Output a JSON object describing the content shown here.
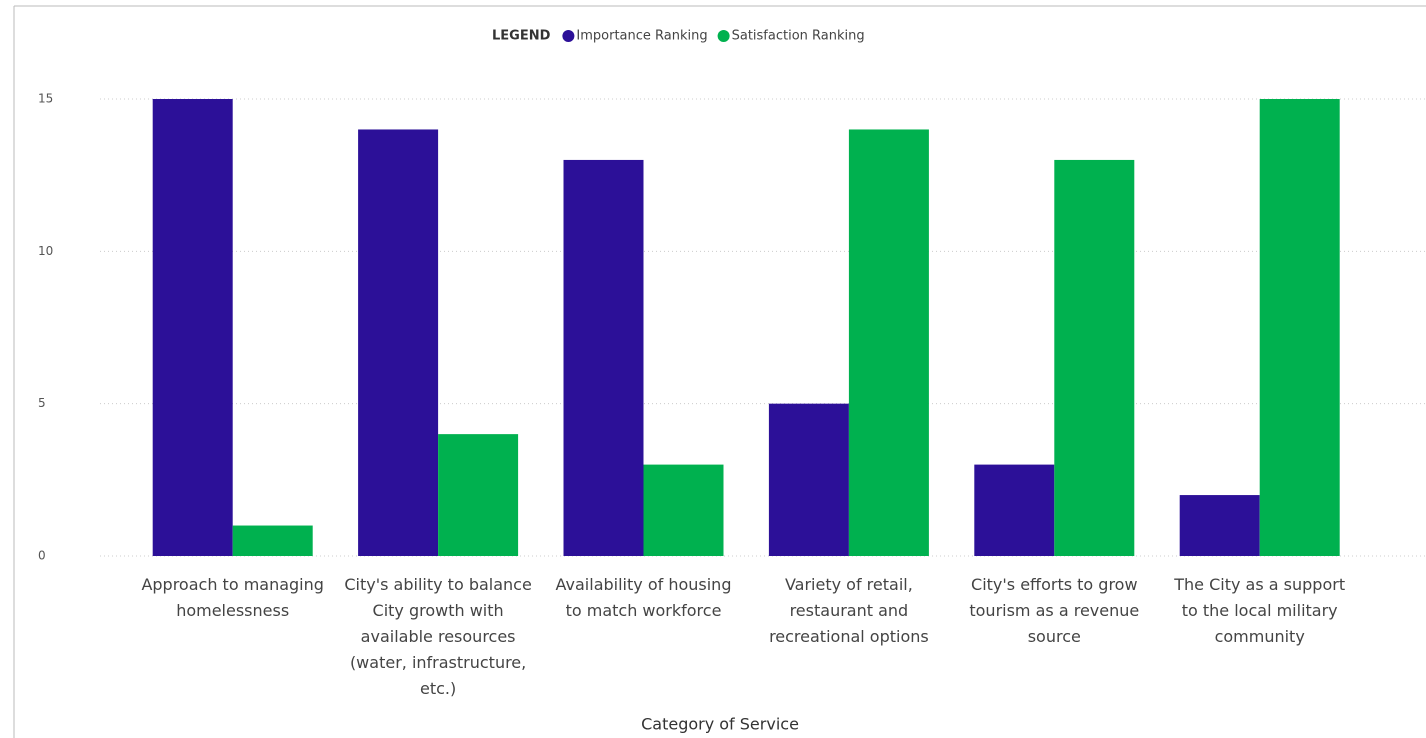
{
  "chart_data": {
    "type": "bar",
    "legend_title": "LEGEND",
    "x_label": "Category of Service",
    "categories": [
      "Approach to managing homelessness",
      "City's ability to balance City growth with available resources (water, infrastructure, etc.)",
      "Availability of housing to match workforce",
      "Variety of retail, restaurant and recreational options",
      "City's efforts to grow tourism as a revenue source",
      "The City as a support to the local military community"
    ],
    "series": [
      {
        "name": "Importance Ranking",
        "color": "#2c1098",
        "values": [
          15,
          14,
          13,
          5,
          3,
          2
        ]
      },
      {
        "name": "Satisfaction Ranking",
        "color": "#00b14f",
        "values": [
          1,
          4,
          3,
          14,
          13,
          15
        ]
      }
    ],
    "ylim": [
      0,
      15
    ],
    "yticks": [
      0,
      5,
      10,
      15
    ],
    "grid": true,
    "legend_position": "top"
  }
}
